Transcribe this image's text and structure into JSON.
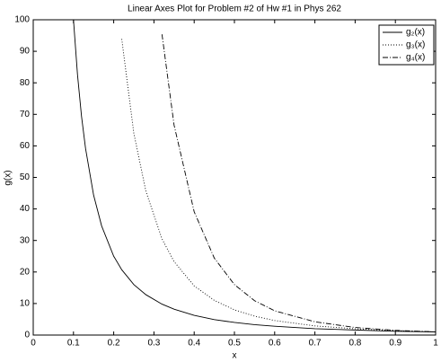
{
  "chart_data": {
    "type": "line",
    "title": "Linear Axes Plot for Problem #2 of Hw #1 in Phys 262",
    "x_label": "x",
    "y_label": "g(x)",
    "x": [
      0.1,
      0.11,
      0.12,
      0.13,
      0.15,
      0.17,
      0.2,
      0.22,
      0.25,
      0.28,
      0.32,
      0.35,
      0.4,
      0.45,
      0.5,
      0.55,
      0.6,
      0.7,
      0.8,
      0.9,
      1.0
    ],
    "series": [
      {
        "name": "g₂(x)",
        "color": "#000000",
        "dash": "solid",
        "values": [
          100,
          82.6,
          69.4,
          59.2,
          44.4,
          34.6,
          25,
          20.7,
          16,
          12.8,
          9.8,
          8.2,
          6.25,
          4.9,
          4,
          3.3,
          2.8,
          2.0,
          1.6,
          1.2,
          1
        ]
      },
      {
        "name": "g₃(x)",
        "color": "#000000",
        "dash": "dotted",
        "values": [
          null,
          null,
          null,
          null,
          null,
          null,
          null,
          93.9,
          64,
          45.6,
          30.5,
          23.3,
          15.6,
          11.0,
          8,
          6.0,
          4.6,
          2.9,
          2.0,
          1.4,
          1
        ]
      },
      {
        "name": "g₄(x)",
        "color": "#000000",
        "dash": "dashdot",
        "values": [
          null,
          null,
          null,
          null,
          null,
          null,
          null,
          null,
          null,
          null,
          95.4,
          66.6,
          39.1,
          24.4,
          16,
          10.9,
          7.7,
          4.2,
          2.4,
          1.5,
          1
        ]
      }
    ],
    "xlim": [
      0,
      1
    ],
    "ylim": [
      0,
      100
    ],
    "xticks": [
      0,
      0.1,
      0.2,
      0.3,
      0.4,
      0.5,
      0.6,
      0.7,
      0.8,
      0.9,
      1
    ],
    "yticks": [
      0,
      10,
      20,
      30,
      40,
      50,
      60,
      70,
      80,
      90,
      100
    ],
    "legend": "top-right"
  }
}
